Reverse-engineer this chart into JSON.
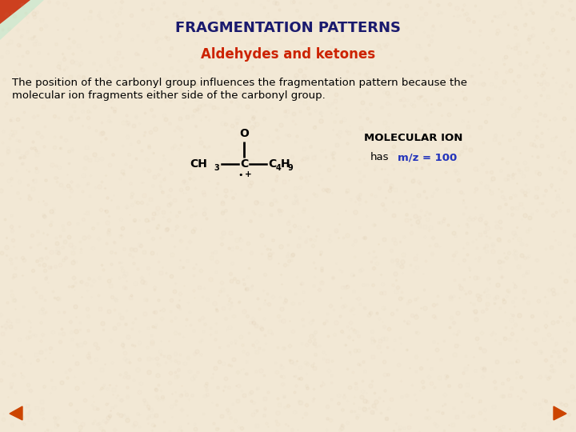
{
  "title": "FRAGMENTATION PATTERNS",
  "subtitle": "Aldehydes and ketones",
  "body_line1": "The position of the carbonyl group influences the fragmentation pattern because the",
  "body_line2": "molecular ion fragments either side of the carbonyl group.",
  "mol_ion_label": "MOLECULAR ION",
  "mol_ion_has": "has",
  "mol_ion_mz": "m/z = 100",
  "background_color": "#f2e8d5",
  "title_color": "#1a1a6e",
  "subtitle_color": "#cc2200",
  "body_color": "#000000",
  "mol_label_color": "#000000",
  "mz_color": "#2233bb",
  "title_fontsize": 13,
  "subtitle_fontsize": 12,
  "body_fontsize": 9.5,
  "mol_fontsize": 10,
  "mol_sub_fontsize": 7,
  "nav_arrow_color": "#cc4400",
  "icon_color1": "#cc2200",
  "icon_color2": "#228822"
}
